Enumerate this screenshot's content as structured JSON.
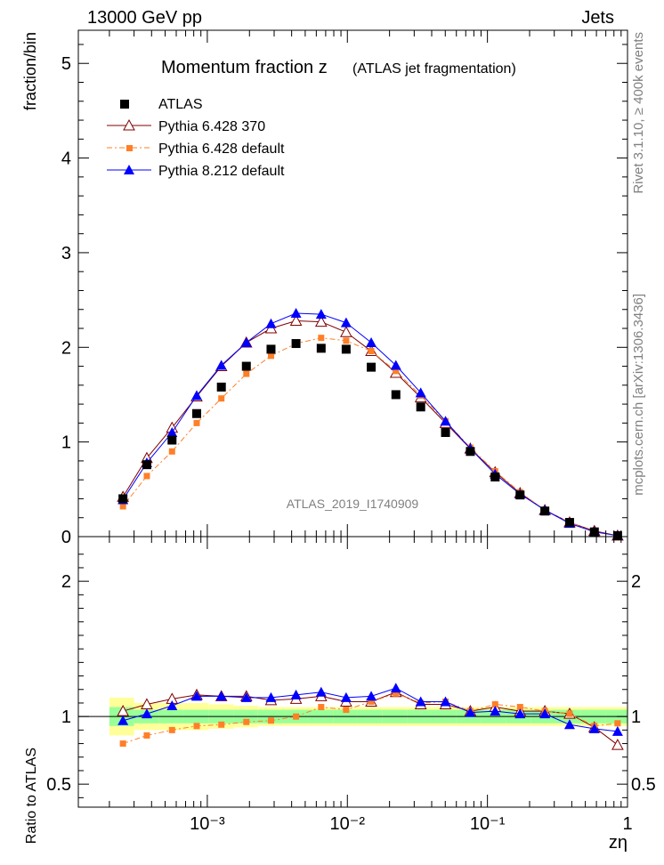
{
  "header": {
    "energy_label": "13000 GeV pp",
    "process_label": "Jets"
  },
  "side_labels": {
    "rivet": "Rivet 3.1.10, ≥ 400k events",
    "mcplots": "mcplots.cern.ch [arXiv:1306.3436]"
  },
  "chart_data": [
    {
      "type": "scatter",
      "title": "Momentum fraction z",
      "subtitle": "(ATLAS jet fragmentation)",
      "watermark": "ATLAS_2019_I1740909",
      "xlabel": "zη",
      "ylabel": "fraction/bin",
      "xscale": "log",
      "xlim": [
        0.00012,
        1.0
      ],
      "ylim": [
        0,
        5.35
      ],
      "yticks": [
        0,
        1,
        2,
        3,
        4,
        5
      ],
      "ytick_labels": [
        "0",
        "1",
        "2",
        "3",
        "4",
        "5"
      ],
      "legend_position": "top-left",
      "x": [
        0.00025,
        0.00037,
        0.00056,
        0.00084,
        0.00126,
        0.0019,
        0.00285,
        0.0043,
        0.0065,
        0.0098,
        0.0148,
        0.0222,
        0.0334,
        0.0502,
        0.0755,
        0.1135,
        0.171,
        0.257,
        0.386,
        0.58,
        0.85
      ],
      "series": [
        {
          "name": "ATLAS",
          "color": "#000000",
          "marker": "square",
          "values": [
            0.4,
            0.76,
            1.02,
            1.3,
            1.58,
            1.8,
            1.98,
            2.04,
            1.99,
            1.98,
            1.79,
            1.5,
            1.37,
            1.1,
            0.9,
            0.63,
            0.44,
            0.27,
            0.15,
            0.05,
            0.01
          ]
        },
        {
          "name": "Pythia 6.428 370",
          "color": "#800000",
          "marker": "open-triangle",
          "values": [
            0.42,
            0.83,
            1.15,
            1.48,
            1.8,
            2.05,
            2.2,
            2.28,
            2.27,
            2.16,
            1.96,
            1.73,
            1.47,
            1.2,
            0.93,
            0.68,
            0.46,
            0.28,
            0.15,
            0.06,
            0.01
          ]
        },
        {
          "name": "Pythia 6.428 default",
          "color": "#ff7f27",
          "marker": "small-square",
          "dashed": true,
          "values": [
            0.32,
            0.64,
            0.9,
            1.2,
            1.46,
            1.72,
            1.91,
            2.04,
            2.1,
            2.07,
            1.96,
            1.75,
            1.49,
            1.22,
            0.94,
            0.69,
            0.47,
            0.28,
            0.15,
            0.05,
            0.01
          ]
        },
        {
          "name": "Pythia 8.212 default",
          "color": "#0000ff",
          "marker": "triangle",
          "values": [
            0.39,
            0.78,
            1.1,
            1.49,
            1.81,
            2.05,
            2.25,
            2.36,
            2.35,
            2.26,
            2.05,
            1.81,
            1.52,
            1.22,
            0.93,
            0.66,
            0.45,
            0.28,
            0.14,
            0.05,
            0.01
          ]
        }
      ]
    },
    {
      "type": "scatter",
      "title": "Ratio to ATLAS",
      "xlabel": "zη",
      "ylabel": "Ratio to ATLAS",
      "xscale": "log",
      "xlim": [
        0.00012,
        1.0
      ],
      "ylim": [
        0.33,
        2.33
      ],
      "yticks": [
        0.5,
        1,
        2
      ],
      "ytick_labels": [
        "0.5",
        "1",
        "2"
      ],
      "xticks": [
        0.001,
        0.01,
        0.1,
        1
      ],
      "xtick_labels": [
        "10⁻³",
        "10⁻²",
        "10⁻¹",
        "1"
      ],
      "x_bin_edges": [
        0.0002,
        0.0003,
        0.00045,
        0.00068,
        0.00102,
        0.00154,
        0.0023,
        0.0035,
        0.0052,
        0.0079,
        0.0118,
        0.0178,
        0.0267,
        0.04,
        0.06,
        0.09,
        0.136,
        0.205,
        0.31,
        0.465,
        0.7,
        1.0
      ],
      "band_stat": [
        0.07,
        0.05,
        0.05,
        0.05,
        0.05,
        0.05,
        0.05,
        0.05,
        0.05,
        0.05,
        0.05,
        0.05,
        0.05,
        0.05,
        0.05,
        0.05,
        0.05,
        0.05,
        0.05,
        0.05,
        0.05
      ],
      "band_total": [
        0.14,
        0.1,
        0.1,
        0.1,
        0.09,
        0.08,
        0.07,
        0.07,
        0.07,
        0.07,
        0.07,
        0.07,
        0.07,
        0.07,
        0.07,
        0.07,
        0.07,
        0.07,
        0.07,
        0.07,
        0.07
      ],
      "series": [
        {
          "name": "Pythia 6.428 370",
          "color": "#800000",
          "marker": "open-triangle",
          "values": [
            1.04,
            1.09,
            1.13,
            1.16,
            1.15,
            1.15,
            1.12,
            1.13,
            1.15,
            1.11,
            1.11,
            1.18,
            1.09,
            1.09,
            1.04,
            1.07,
            1.04,
            1.04,
            1.02,
            0.92,
            0.79
          ]
        },
        {
          "name": "Pythia 6.428 default",
          "color": "#ff7f27",
          "marker": "small-square",
          "dashed": true,
          "values": [
            0.8,
            0.86,
            0.9,
            0.93,
            0.94,
            0.96,
            0.97,
            1.0,
            1.07,
            1.05,
            1.11,
            1.17,
            1.1,
            1.11,
            1.04,
            1.09,
            1.07,
            1.04,
            1.02,
            0.93,
            0.95
          ]
        },
        {
          "name": "Pythia 8.212 default",
          "color": "#0000ff",
          "marker": "triangle",
          "values": [
            0.97,
            1.02,
            1.08,
            1.15,
            1.15,
            1.14,
            1.14,
            1.16,
            1.18,
            1.14,
            1.15,
            1.21,
            1.11,
            1.11,
            1.03,
            1.04,
            1.02,
            1.02,
            0.94,
            0.91,
            0.89
          ]
        }
      ]
    }
  ]
}
